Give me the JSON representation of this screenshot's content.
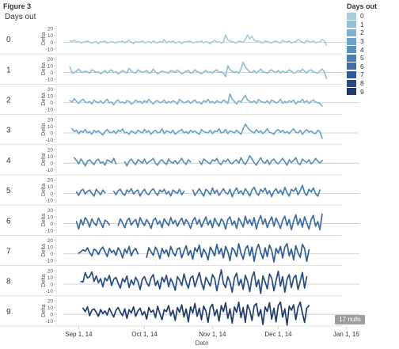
{
  "figure_title": "Figure 3",
  "row_header": "Days out",
  "legend": {
    "title": "Days out",
    "items": [
      "0",
      "1",
      "2",
      "3",
      "4",
      "5",
      "6",
      "7",
      "8",
      "9"
    ]
  },
  "nulls_badge": "17 nulls",
  "colors": [
    "#a9cddb",
    "#93c0d6",
    "#7fb2d0",
    "#6ea4c8",
    "#5a93be",
    "#4a7fb2",
    "#3d6ea7",
    "#315b97",
    "#274a83",
    "#1e3a6c"
  ],
  "chart_data": {
    "type": "line",
    "row_field": "Days out",
    "xlabel": "Date",
    "ylabel": "Delta",
    "x_domain": [
      "2014-08-25",
      "2015-01-07"
    ],
    "x_ticks": [
      {
        "date": "2014-09-01",
        "label": "Sep 1, 14"
      },
      {
        "date": "2014-10-01",
        "label": "Oct 1, 14"
      },
      {
        "date": "2014-11-01",
        "label": "Nov 1, 14"
      },
      {
        "date": "2014-12-01",
        "label": "Dec 1, 14"
      },
      {
        "date": "2015-01-01",
        "label": "Jan 1, 15"
      }
    ],
    "ylim": [
      -15,
      25
    ],
    "y_ticks": [
      20,
      10,
      0,
      -10
    ],
    "series": [
      {
        "name": "0",
        "start": "2014-08-28",
        "gaps": [],
        "values": [
          2,
          1,
          3,
          0,
          1,
          -1,
          0,
          1,
          2,
          0,
          -1,
          0,
          1,
          -2,
          1,
          0,
          2,
          -1,
          0,
          1,
          0,
          -1,
          1,
          0,
          2,
          -1,
          1,
          3,
          0,
          -2,
          1,
          0,
          0,
          2,
          -1,
          0,
          1,
          -1,
          2,
          0,
          -1,
          1,
          0,
          4,
          -1,
          1,
          0,
          2,
          -1,
          0,
          1,
          -2,
          1,
          0,
          2,
          1,
          -1,
          0,
          1,
          0,
          2,
          -1,
          1,
          0,
          -2,
          1,
          3,
          0,
          1,
          -1,
          0,
          11,
          3,
          2,
          1,
          0,
          -1,
          2,
          1,
          0,
          4,
          11,
          5,
          9,
          3,
          1,
          2,
          0,
          -1,
          2,
          1,
          0,
          -1,
          1,
          2,
          0,
          -1,
          3,
          1,
          0,
          2,
          -1,
          0,
          1,
          4,
          2,
          0,
          -1,
          3,
          1,
          0,
          2,
          -1,
          0,
          1,
          4,
          2,
          -4
        ]
      },
      {
        "name": "1",
        "start": "2014-08-28",
        "gaps": [],
        "values": [
          8,
          -1,
          0,
          2,
          5,
          1,
          0,
          2,
          1,
          -1,
          4,
          2,
          0,
          1,
          -2,
          0,
          3,
          -1,
          2,
          4,
          0,
          1,
          -2,
          0,
          3,
          1,
          -1,
          6,
          2,
          0,
          -1,
          4,
          2,
          0,
          1,
          3,
          -1,
          0,
          5,
          1,
          -2,
          0,
          2,
          1,
          0,
          -1,
          3,
          2,
          0,
          4,
          1,
          -2,
          0,
          2,
          3,
          -1,
          0,
          4,
          1,
          0,
          -2,
          1,
          3,
          0,
          1,
          -1,
          2,
          4,
          0,
          1,
          -1,
          -6,
          10,
          4,
          2,
          0,
          1,
          -1,
          5,
          15,
          8,
          4,
          1,
          0,
          3,
          -1,
          2,
          5,
          1,
          0,
          -1,
          2,
          4,
          1,
          0,
          3,
          -1,
          2,
          0,
          1,
          4,
          2,
          -1,
          0,
          3,
          1,
          5,
          2,
          -1,
          3,
          4,
          1,
          0,
          -1,
          2,
          5,
          1,
          -9
        ]
      },
      {
        "name": "2",
        "start": "2014-08-28",
        "gaps": [],
        "values": [
          3,
          1,
          6,
          2,
          -1,
          3,
          5,
          1,
          0,
          2,
          -2,
          4,
          1,
          0,
          3,
          -1,
          2,
          5,
          0,
          1,
          -3,
          2,
          4,
          0,
          1,
          -1,
          3,
          2,
          -2,
          0,
          4,
          1,
          2,
          -1,
          3,
          0,
          5,
          1,
          -2,
          2,
          3,
          0,
          1,
          4,
          -1,
          2,
          0,
          3,
          1,
          -2,
          5,
          2,
          0,
          1,
          3,
          -1,
          2,
          4,
          0,
          1,
          -2,
          3,
          1,
          5,
          0,
          2,
          -1,
          3,
          1,
          0,
          4,
          2,
          -1,
          13,
          5,
          2,
          -2,
          3,
          1,
          6,
          11,
          4,
          2,
          0,
          3,
          -1,
          5,
          2,
          1,
          0,
          3,
          -1,
          4,
          2,
          0,
          1,
          5,
          -1,
          2,
          0,
          3,
          1,
          4,
          -2,
          2,
          1,
          5,
          0,
          3,
          -1,
          2,
          4,
          1,
          0,
          -1,
          -5
        ]
      },
      {
        "name": "3",
        "start": "2014-08-29",
        "gaps": [],
        "values": [
          6,
          2,
          4,
          -1,
          3,
          1,
          5,
          0,
          2,
          -2,
          4,
          1,
          3,
          0,
          -3,
          2,
          5,
          1,
          0,
          3,
          -1,
          4,
          2,
          6,
          0,
          1,
          -2,
          3,
          1,
          -1,
          4,
          2,
          0,
          5,
          1,
          3,
          -2,
          2,
          4,
          0,
          1,
          6,
          -1,
          3,
          2,
          0,
          4,
          -2,
          1,
          3,
          5,
          0,
          2,
          -1,
          4,
          1,
          3,
          0,
          -2,
          5,
          2,
          1,
          0,
          4,
          -1,
          3,
          2,
          6,
          0,
          1,
          5,
          -1,
          3,
          2,
          0,
          4,
          1,
          -2,
          6,
          13,
          8,
          4,
          2,
          0,
          5,
          1,
          3,
          -1,
          2,
          6,
          1,
          0,
          -2,
          3,
          5,
          1,
          4,
          0,
          2,
          -1,
          3,
          6,
          1,
          0,
          4,
          -2,
          2,
          5,
          1,
          3,
          0,
          -1,
          4,
          2,
          -8
        ]
      },
      {
        "name": "4",
        "start": "2014-08-30",
        "gaps": [
          [
            20,
            22
          ],
          [
            54,
            56
          ]
        ],
        "values": [
          8,
          4,
          -1,
          6,
          2,
          -4,
          3,
          5,
          1,
          -2,
          4,
          6,
          0,
          2,
          -3,
          5,
          3,
          1,
          7,
          -1,
          0,
          0,
          0,
          2,
          -4,
          3,
          6,
          1,
          -2,
          5,
          3,
          0,
          6,
          -1,
          2,
          4,
          7,
          0,
          -3,
          3,
          5,
          1,
          -2,
          6,
          2,
          0,
          4,
          -1,
          3,
          7,
          1,
          -2,
          5,
          2,
          0,
          0,
          0,
          3,
          -2,
          6,
          4,
          1,
          -1,
          5,
          3,
          7,
          0,
          -2,
          4,
          2,
          6,
          1,
          -1,
          3,
          5,
          0,
          8,
          2,
          -2,
          4,
          11,
          6,
          1,
          -3,
          3,
          8,
          2,
          0,
          5,
          -2,
          4,
          6,
          1,
          -1,
          3,
          7,
          2,
          -3,
          5,
          1,
          4,
          8,
          0,
          -2,
          6,
          3,
          1,
          5,
          -1,
          2,
          7,
          3,
          0,
          4
        ]
      },
      {
        "name": "5",
        "start": "2014-08-31",
        "gaps": [
          [
            14,
            16
          ],
          [
            50,
            52
          ]
        ],
        "values": [
          2,
          -3,
          4,
          6,
          -1,
          3,
          5,
          0,
          -4,
          6,
          2,
          -2,
          5,
          1,
          0,
          0,
          0,
          3,
          -2,
          4,
          6,
          0,
          -3,
          5,
          2,
          7,
          -1,
          3,
          5,
          -4,
          2,
          6,
          0,
          -2,
          4,
          7,
          1,
          -3,
          5,
          2,
          6,
          -1,
          3,
          -4,
          5,
          2,
          0,
          6,
          -2,
          3,
          0,
          0,
          0,
          5,
          -3,
          2,
          7,
          1,
          -4,
          6,
          3,
          -2,
          8,
          0,
          5,
          -3,
          2,
          7,
          1,
          -1,
          6,
          -5,
          3,
          8,
          0,
          4,
          -2,
          7,
          2,
          -4,
          5,
          9,
          1,
          -3,
          6,
          2,
          8,
          -1,
          4,
          -5,
          3,
          7,
          0,
          5,
          -2,
          9,
          1,
          -4,
          6,
          3,
          8,
          -2,
          4,
          12,
          1,
          -3,
          6,
          2,
          8,
          0,
          -4,
          5
        ]
      },
      {
        "name": "6",
        "start": "2014-08-31",
        "gaps": [
          [
            16,
            18
          ]
        ],
        "values": [
          3,
          -8,
          6,
          -2,
          9,
          4,
          -5,
          7,
          1,
          -3,
          8,
          2,
          -6,
          5,
          3,
          -2,
          0,
          0,
          5,
          -3,
          7,
          1,
          -6,
          4,
          8,
          -2,
          3,
          6,
          -5,
          9,
          2,
          -3,
          6,
          1,
          -7,
          5,
          8,
          -1,
          4,
          -6,
          7,
          2,
          -3,
          9,
          0,
          5,
          -4,
          3,
          8,
          -2,
          6,
          1,
          -7,
          4,
          9,
          -1,
          6,
          -5,
          3,
          10,
          -2,
          5,
          -6,
          8,
          1,
          -4,
          7,
          3,
          -8,
          6,
          10,
          -2,
          4,
          -7,
          8,
          2,
          -5,
          11,
          0,
          6,
          -3,
          9,
          -8,
          4,
          12,
          -1,
          7,
          -6,
          3,
          10,
          -4,
          8,
          1,
          -7,
          5,
          11,
          -3,
          6,
          -9,
          4,
          13,
          -2,
          7,
          -5,
          10,
          1,
          -8,
          6,
          12,
          -4,
          3,
          -9,
          14
        ]
      },
      {
        "name": "7",
        "start": "2014-09-01",
        "gaps": [
          [
            28,
            30
          ]
        ],
        "values": [
          1,
          3,
          6,
          4,
          9,
          2,
          -3,
          7,
          5,
          -1,
          6,
          10,
          3,
          -4,
          8,
          2,
          5,
          -2,
          9,
          4,
          -6,
          7,
          1,
          11,
          -3,
          5,
          8,
          0,
          0,
          0,
          6,
          -5,
          9,
          3,
          -2,
          10,
          4,
          -7,
          8,
          1,
          6,
          -4,
          11,
          2,
          -3,
          7,
          9,
          -6,
          4,
          12,
          -2,
          5,
          -8,
          9,
          3,
          13,
          -5,
          7,
          1,
          -9,
          10,
          4,
          -3,
          14,
          0,
          8,
          -6,
          11,
          3,
          -10,
          9,
          5,
          -4,
          15,
          1,
          -8,
          7,
          12,
          -3,
          10,
          -11,
          6,
          14,
          2,
          -7,
          9,
          -4,
          13,
          5,
          -12,
          8,
          1,
          11,
          -6,
          10,
          15,
          -3,
          7,
          -9,
          12,
          2,
          -5,
          14,
          8,
          -11,
          6
        ]
      },
      {
        "name": "8",
        "start": "2014-09-02",
        "gaps": [],
        "values": [
          4,
          3,
          17,
          9,
          11,
          18,
          4,
          12,
          2,
          8,
          -4,
          9,
          5,
          13,
          -2,
          7,
          10,
          1,
          -6,
          8,
          3,
          12,
          -5,
          6,
          -1,
          10,
          4,
          -8,
          7,
          11,
          2,
          -3,
          9,
          14,
          -2,
          5,
          -7,
          10,
          3,
          13,
          -4,
          8,
          1,
          -9,
          11,
          6,
          -2,
          15,
          3,
          -6,
          9,
          12,
          -4,
          7,
          17,
          2,
          -8,
          10,
          4,
          -3,
          14,
          8,
          -10,
          6,
          21,
          1,
          -5,
          11,
          3,
          -12,
          9,
          16,
          -2,
          7,
          -8,
          13,
          4,
          -11,
          10,
          18,
          -4,
          6,
          -14,
          12,
          3,
          -7,
          15,
          9,
          -10,
          5,
          19,
          -3,
          11,
          -12,
          7,
          14,
          -5,
          9,
          13,
          -8,
          4,
          17,
          -6,
          11
        ]
      },
      {
        "name": "9",
        "start": "2014-09-03",
        "gaps": [],
        "values": [
          9,
          4,
          11,
          -2,
          6,
          8,
          3,
          -3,
          7,
          1,
          5,
          -1,
          9,
          2,
          -4,
          6,
          10,
          3,
          -2,
          8,
          -6,
          7,
          2,
          11,
          -3,
          5,
          9,
          -1,
          4,
          -7,
          10,
          3,
          6,
          -5,
          12,
          1,
          -8,
          7,
          4,
          13,
          -2,
          6,
          -9,
          10,
          3,
          14,
          -4,
          8,
          -11,
          11,
          2,
          16,
          -3,
          9,
          -8,
          12,
          5,
          -12,
          10,
          15,
          -2,
          7,
          -10,
          13,
          4,
          17,
          -6,
          8,
          -13,
          11,
          3,
          18,
          -5,
          10,
          -12,
          14,
          6,
          -9,
          12,
          16,
          -3,
          7,
          -15,
          11,
          4,
          17,
          -7,
          9,
          -11,
          13,
          18,
          -4,
          8,
          -16,
          12,
          6,
          14,
          -8,
          10,
          18,
          2,
          -12,
          9,
          13
        ]
      }
    ]
  }
}
